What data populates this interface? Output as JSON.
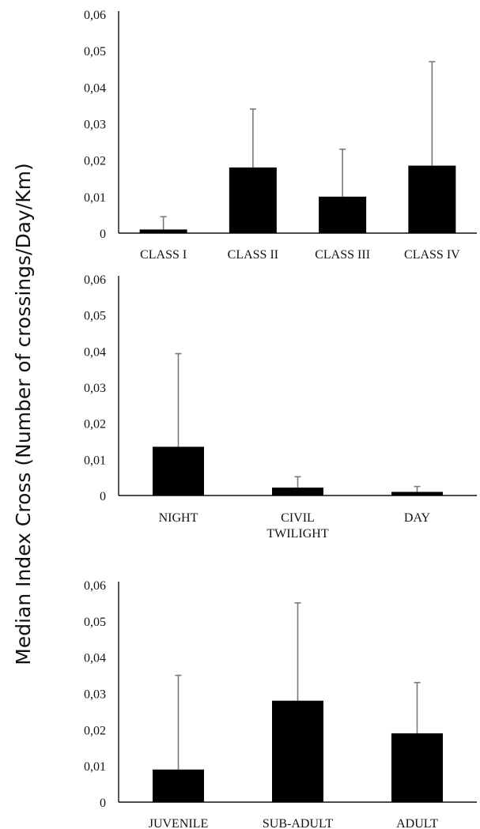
{
  "ylabel": "Median Index Cross (Number of crossings/Day/Km)",
  "chart_data": [
    {
      "type": "bar",
      "categories": [
        [
          "CLASS I"
        ],
        [
          "CLASS II"
        ],
        [
          "CLASS III"
        ],
        [
          "CLASS IV"
        ]
      ],
      "values": [
        0.001,
        0.018,
        0.01,
        0.0185
      ],
      "error_upper": [
        0.0045,
        0.034,
        0.023,
        0.047
      ],
      "ylim": [
        0,
        0.06
      ],
      "yticks": [
        "0",
        "0,01",
        "0,02",
        "0,03",
        "0,04",
        "0,05",
        "0,06"
      ],
      "bar_color": "#000000",
      "error_color": "#7a7a7a"
    },
    {
      "type": "bar",
      "categories": [
        [
          "NIGHT"
        ],
        [
          "CIVIL",
          "TWILIGHT"
        ],
        [
          "DAY"
        ]
      ],
      "values": [
        0.0135,
        0.0022,
        0.001
      ],
      "error_upper": [
        0.0393,
        0.0052,
        0.0025
      ],
      "ylim": [
        0,
        0.06
      ],
      "yticks": [
        "0",
        "0,01",
        "0,02",
        "0,03",
        "0,04",
        "0,05",
        "0,06"
      ],
      "bar_color": "#000000",
      "error_color": "#7a7a7a"
    },
    {
      "type": "bar",
      "categories": [
        [
          "JUVENILE"
        ],
        [
          "SUB-ADULT"
        ],
        [
          "ADULT"
        ]
      ],
      "values": [
        0.009,
        0.028,
        0.019
      ],
      "error_upper": [
        0.035,
        0.055,
        0.033
      ],
      "ylim": [
        0,
        0.06
      ],
      "yticks": [
        "0",
        "0,01",
        "0,02",
        "0,03",
        "0,04",
        "0,05",
        "0,06"
      ],
      "bar_color": "#000000",
      "error_color": "#7a7a7a"
    }
  ]
}
